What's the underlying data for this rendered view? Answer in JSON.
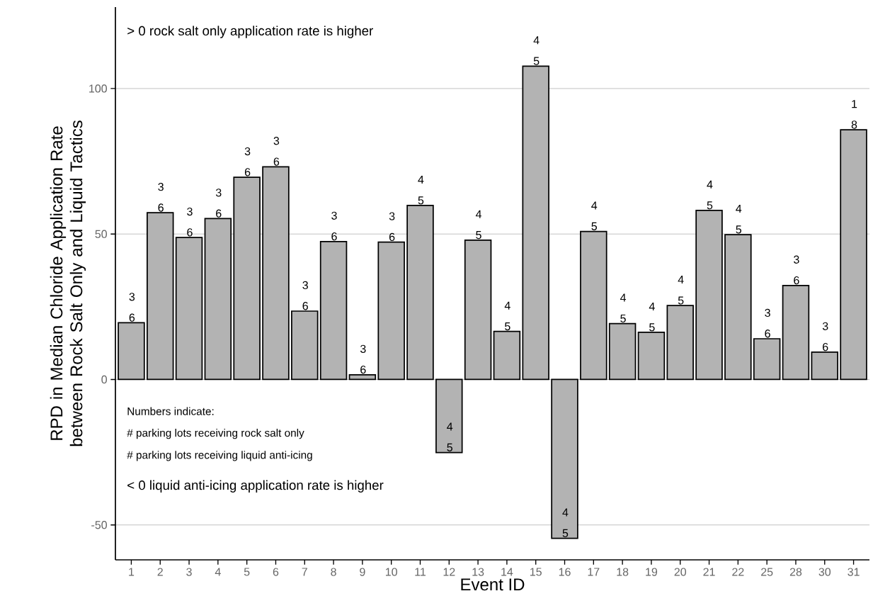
{
  "chart_data": {
    "type": "bar",
    "xlabel": "Event ID",
    "ylabel": "RPD in Median Chloride Application Rate between Rock Salt Only and Liquid Tactics",
    "categories": [
      "1",
      "2",
      "3",
      "4",
      "5",
      "6",
      "7",
      "8",
      "9",
      "10",
      "11",
      "12",
      "13",
      "14",
      "15",
      "16",
      "17",
      "18",
      "19",
      "20",
      "21",
      "22",
      "25",
      "28",
      "30",
      "31"
    ],
    "values": [
      19.5,
      57.3,
      48.8,
      55.3,
      69.5,
      73.1,
      23.5,
      47.4,
      1.6,
      47.2,
      59.8,
      -25.1,
      47.9,
      16.5,
      107.7,
      -54.6,
      50.9,
      19.2,
      16.2,
      25.4,
      58.1,
      49.8,
      14.0,
      32.3,
      9.4,
      85.8
    ],
    "color": "#b3b3b3",
    "ylim": [
      -62,
      128
    ],
    "yticks": [
      -50,
      0,
      50,
      100
    ],
    "grid": "y",
    "annotations": [
      "> 0 rock salt only application rate is higher",
      "Numbers indicate:",
      "# parking lots receiving rock salt only",
      "# parking lots receiving liquid anti-icing",
      "< 0 liquid anti-icing application rate is higher",
      {
        "text": "3 6",
        "x": "1",
        "y": 19.5
      },
      {
        "text": "3 6",
        "x": "2",
        "y": 57.3
      },
      {
        "text": "3 6",
        "x": "3",
        "y": 48.8
      },
      {
        "text": "3 6",
        "x": "4",
        "y": 55.3
      },
      {
        "text": "3 6",
        "x": "5",
        "y": 69.5
      },
      {
        "text": "3 6",
        "x": "6",
        "y": 73.1
      },
      {
        "text": "3 6",
        "x": "7",
        "y": 23.5
      },
      {
        "text": "3 6",
        "x": "8",
        "y": 47.4
      },
      {
        "text": "3 6",
        "x": "9",
        "y": 1.6
      },
      {
        "text": "3 6",
        "x": "10",
        "y": 47.2
      },
      {
        "text": "4 5",
        "x": "11",
        "y": 59.8
      },
      {
        "text": "4 5",
        "x": "12",
        "y": -25.1
      },
      {
        "text": "4 5",
        "x": "13",
        "y": 47.9
      },
      {
        "text": "4 5",
        "x": "14",
        "y": 16.5
      },
      {
        "text": "4 5",
        "x": "15",
        "y": 107.7
      },
      {
        "text": "4 5",
        "x": "16",
        "y": -54.6
      },
      {
        "text": "4 5",
        "x": "17",
        "y": 50.9
      },
      {
        "text": "4 5",
        "x": "18",
        "y": 19.2
      },
      {
        "text": "4 5",
        "x": "19",
        "y": 16.2
      },
      {
        "text": "4 5",
        "x": "20",
        "y": 25.4
      },
      {
        "text": "4 5",
        "x": "21",
        "y": 58.1
      },
      {
        "text": "4 5",
        "x": "22",
        "y": 49.8
      },
      {
        "text": "3 6",
        "x": "25",
        "y": 14.0
      },
      {
        "text": "3 6",
        "x": "28",
        "y": 32.3
      },
      {
        "text": "3 6",
        "x": "30",
        "y": 9.4
      },
      {
        "text": "1 8",
        "x": "31",
        "y": 85.8
      }
    ]
  }
}
